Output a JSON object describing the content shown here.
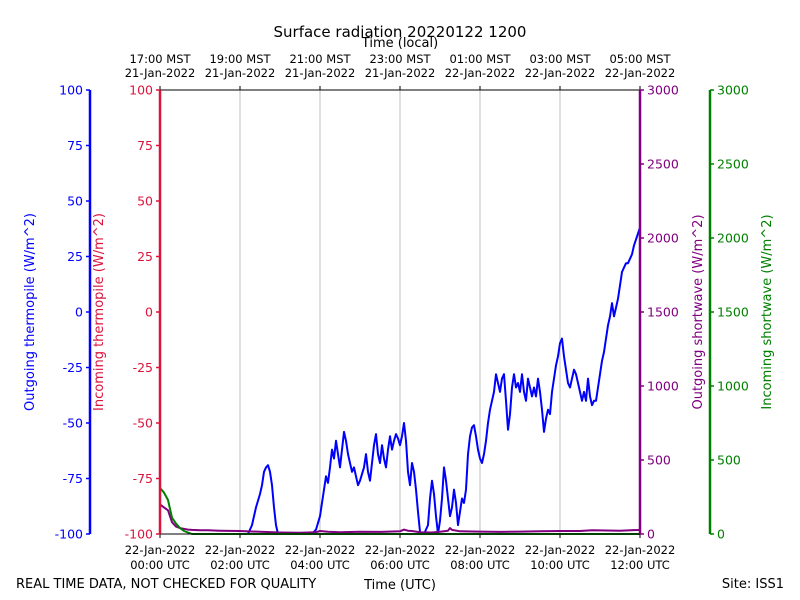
{
  "chart_data": {
    "type": "line",
    "title": "Surface radiation 20220122 1200",
    "xlabel_top": "Time (local)",
    "xlabel_bottom": "Time (UTC)",
    "footer_left": "REAL TIME DATA, NOT CHECKED FOR QUALITY",
    "footer_right": "Site: ISS1",
    "xlim_hours": [
      0,
      12
    ],
    "grid": "vertical",
    "bottom_ticks": [
      {
        "h": 0,
        "l1": "22-Jan-2022",
        "l2": "00:00 UTC"
      },
      {
        "h": 2,
        "l1": "22-Jan-2022",
        "l2": "02:00 UTC"
      },
      {
        "h": 4,
        "l1": "22-Jan-2022",
        "l2": "04:00 UTC"
      },
      {
        "h": 6,
        "l1": "22-Jan-2022",
        "l2": "06:00 UTC"
      },
      {
        "h": 8,
        "l1": "22-Jan-2022",
        "l2": "08:00 UTC"
      },
      {
        "h": 10,
        "l1": "22-Jan-2022",
        "l2": "10:00 UTC"
      },
      {
        "h": 12,
        "l1": "22-Jan-2022",
        "l2": "12:00 UTC"
      }
    ],
    "top_ticks": [
      {
        "h": 0,
        "l1": "17:00 MST",
        "l2": "21-Jan-2022"
      },
      {
        "h": 2,
        "l1": "19:00 MST",
        "l2": "21-Jan-2022"
      },
      {
        "h": 4,
        "l1": "21:00 MST",
        "l2": "21-Jan-2022"
      },
      {
        "h": 6,
        "l1": "23:00 MST",
        "l2": "21-Jan-2022"
      },
      {
        "h": 8,
        "l1": "01:00 MST",
        "l2": "22-Jan-2022"
      },
      {
        "h": 10,
        "l1": "03:00 MST",
        "l2": "22-Jan-2022"
      },
      {
        "h": 12,
        "l1": "05:00 MST",
        "l2": "22-Jan-2022"
      }
    ],
    "axes": [
      {
        "name": "outgoing-thermopile",
        "label": "Outgoing thermopile (W/m^2)",
        "color": "#0000ff",
        "ylim": [
          -100,
          100
        ],
        "ticks": [
          -100,
          -75,
          -50,
          -25,
          0,
          25,
          50,
          75,
          100
        ]
      },
      {
        "name": "incoming-thermopile",
        "label": "Incoming thermopile (W/m^2)",
        "color": "#dc143c",
        "ylim": [
          -100,
          100
        ],
        "ticks": [
          -100,
          -75,
          -50,
          -25,
          0,
          25,
          50,
          75,
          100
        ]
      },
      {
        "name": "outgoing-shortwave",
        "label": "Outgoing shortwave (W/m^2)",
        "color": "#800080",
        "ylim": [
          0,
          3000
        ],
        "ticks": [
          0,
          500,
          1000,
          1500,
          2000,
          2500,
          3000
        ]
      },
      {
        "name": "incoming-shortwave",
        "label": "Incoming shortwave (W/m^2)",
        "color": "#008000",
        "ylim": [
          0,
          3000
        ],
        "ticks": [
          0,
          500,
          1000,
          1500,
          2000,
          2500,
          3000
        ]
      }
    ],
    "series": [
      {
        "name": "Outgoing thermopile",
        "axis": 0,
        "color": "#0000ff",
        "points": [
          [
            2.2,
            -100
          ],
          [
            2.3,
            -96
          ],
          [
            2.4,
            -88
          ],
          [
            2.5,
            -82
          ],
          [
            2.55,
            -78
          ],
          [
            2.6,
            -72
          ],
          [
            2.65,
            -70
          ],
          [
            2.7,
            -69
          ],
          [
            2.75,
            -72
          ],
          [
            2.8,
            -78
          ],
          [
            2.85,
            -88
          ],
          [
            2.9,
            -96
          ],
          [
            2.95,
            -100
          ],
          [
            3.0,
            -100
          ],
          [
            3.5,
            -100
          ],
          [
            3.8,
            -100
          ],
          [
            3.9,
            -98
          ],
          [
            4.0,
            -92
          ],
          [
            4.05,
            -86
          ],
          [
            4.1,
            -80
          ],
          [
            4.15,
            -74
          ],
          [
            4.2,
            -77
          ],
          [
            4.25,
            -70
          ],
          [
            4.3,
            -62
          ],
          [
            4.35,
            -66
          ],
          [
            4.4,
            -58
          ],
          [
            4.45,
            -64
          ],
          [
            4.5,
            -70
          ],
          [
            4.55,
            -62
          ],
          [
            4.6,
            -54
          ],
          [
            4.65,
            -58
          ],
          [
            4.7,
            -64
          ],
          [
            4.75,
            -68
          ],
          [
            4.8,
            -72
          ],
          [
            4.85,
            -70
          ],
          [
            4.9,
            -74
          ],
          [
            4.95,
            -78
          ],
          [
            5.0,
            -76
          ],
          [
            5.1,
            -70
          ],
          [
            5.15,
            -64
          ],
          [
            5.2,
            -72
          ],
          [
            5.25,
            -76
          ],
          [
            5.3,
            -68
          ],
          [
            5.35,
            -60
          ],
          [
            5.4,
            -55
          ],
          [
            5.45,
            -64
          ],
          [
            5.5,
            -68
          ],
          [
            5.55,
            -60
          ],
          [
            5.6,
            -66
          ],
          [
            5.65,
            -70
          ],
          [
            5.7,
            -62
          ],
          [
            5.75,
            -56
          ],
          [
            5.8,
            -62
          ],
          [
            5.85,
            -58
          ],
          [
            5.9,
            -55
          ],
          [
            5.95,
            -57
          ],
          [
            6.0,
            -60
          ],
          [
            6.05,
            -56
          ],
          [
            6.1,
            -50
          ],
          [
            6.15,
            -58
          ],
          [
            6.2,
            -72
          ],
          [
            6.25,
            -78
          ],
          [
            6.3,
            -68
          ],
          [
            6.35,
            -72
          ],
          [
            6.4,
            -80
          ],
          [
            6.45,
            -90
          ],
          [
            6.5,
            -99
          ],
          [
            6.55,
            -100
          ],
          [
            6.6,
            -100
          ],
          [
            6.7,
            -96
          ],
          [
            6.75,
            -84
          ],
          [
            6.8,
            -76
          ],
          [
            6.85,
            -82
          ],
          [
            6.9,
            -92
          ],
          [
            6.95,
            -100
          ],
          [
            7.0,
            -94
          ],
          [
            7.05,
            -84
          ],
          [
            7.1,
            -70
          ],
          [
            7.15,
            -76
          ],
          [
            7.2,
            -84
          ],
          [
            7.25,
            -92
          ],
          [
            7.3,
            -88
          ],
          [
            7.35,
            -80
          ],
          [
            7.4,
            -86
          ],
          [
            7.45,
            -96
          ],
          [
            7.5,
            -90
          ],
          [
            7.55,
            -84
          ],
          [
            7.6,
            -86
          ],
          [
            7.65,
            -80
          ],
          [
            7.7,
            -64
          ],
          [
            7.75,
            -56
          ],
          [
            7.8,
            -52
          ],
          [
            7.85,
            -51
          ],
          [
            7.9,
            -56
          ],
          [
            7.95,
            -62
          ],
          [
            8.0,
            -66
          ],
          [
            8.05,
            -68
          ],
          [
            8.1,
            -64
          ],
          [
            8.15,
            -58
          ],
          [
            8.2,
            -50
          ],
          [
            8.25,
            -44
          ],
          [
            8.3,
            -40
          ],
          [
            8.35,
            -36
          ],
          [
            8.4,
            -28
          ],
          [
            8.45,
            -32
          ],
          [
            8.5,
            -36
          ],
          [
            8.55,
            -30
          ],
          [
            8.6,
            -28
          ],
          [
            8.65,
            -40
          ],
          [
            8.7,
            -53
          ],
          [
            8.75,
            -46
          ],
          [
            8.8,
            -34
          ],
          [
            8.85,
            -28
          ],
          [
            8.9,
            -34
          ],
          [
            8.95,
            -32
          ],
          [
            9.0,
            -36
          ],
          [
            9.05,
            -28
          ],
          [
            9.1,
            -36
          ],
          [
            9.15,
            -40
          ],
          [
            9.2,
            -30
          ],
          [
            9.25,
            -34
          ],
          [
            9.3,
            -38
          ],
          [
            9.35,
            -34
          ],
          [
            9.4,
            -38
          ],
          [
            9.45,
            -30
          ],
          [
            9.5,
            -36
          ],
          [
            9.55,
            -44
          ],
          [
            9.6,
            -54
          ],
          [
            9.65,
            -48
          ],
          [
            9.7,
            -44
          ],
          [
            9.75,
            -46
          ],
          [
            9.8,
            -36
          ],
          [
            9.85,
            -30
          ],
          [
            9.9,
            -24
          ],
          [
            9.95,
            -20
          ],
          [
            10.0,
            -14
          ],
          [
            10.05,
            -12
          ],
          [
            10.1,
            -20
          ],
          [
            10.15,
            -26
          ],
          [
            10.2,
            -32
          ],
          [
            10.25,
            -34
          ],
          [
            10.3,
            -30
          ],
          [
            10.35,
            -26
          ],
          [
            10.4,
            -28
          ],
          [
            10.45,
            -32
          ],
          [
            10.5,
            -36
          ],
          [
            10.55,
            -40
          ],
          [
            10.6,
            -36
          ],
          [
            10.65,
            -40
          ],
          [
            10.7,
            -30
          ],
          [
            10.75,
            -38
          ],
          [
            10.8,
            -42
          ],
          [
            10.85,
            -40
          ],
          [
            10.9,
            -40
          ],
          [
            10.95,
            -34
          ],
          [
            11.0,
            -28
          ],
          [
            11.05,
            -22
          ],
          [
            11.1,
            -18
          ],
          [
            11.15,
            -12
          ],
          [
            11.2,
            -6
          ],
          [
            11.25,
            -2
          ],
          [
            11.3,
            4
          ],
          [
            11.35,
            -2
          ],
          [
            11.4,
            2
          ],
          [
            11.45,
            6
          ],
          [
            11.5,
            12
          ],
          [
            11.55,
            18
          ],
          [
            11.6,
            20
          ],
          [
            11.65,
            22
          ],
          [
            11.7,
            22
          ],
          [
            11.75,
            24
          ],
          [
            11.8,
            26
          ],
          [
            11.85,
            30
          ],
          [
            12.0,
            38
          ]
        ]
      },
      {
        "name": "Outgoing shortwave",
        "axis": 2,
        "color": "#800080",
        "points": [
          [
            0.0,
            200
          ],
          [
            0.1,
            180
          ],
          [
            0.2,
            160
          ],
          [
            0.3,
            80
          ],
          [
            0.4,
            50
          ],
          [
            0.5,
            40
          ],
          [
            0.6,
            35
          ],
          [
            0.7,
            30
          ],
          [
            0.8,
            28
          ],
          [
            1.0,
            25
          ],
          [
            1.2,
            25
          ],
          [
            1.5,
            22
          ],
          [
            2.0,
            20
          ],
          [
            2.5,
            15
          ],
          [
            3.0,
            10
          ],
          [
            3.5,
            8
          ],
          [
            3.9,
            12
          ],
          [
            4.0,
            20
          ],
          [
            4.2,
            15
          ],
          [
            4.5,
            12
          ],
          [
            5.0,
            15
          ],
          [
            5.5,
            14
          ],
          [
            6.0,
            18
          ],
          [
            6.1,
            30
          ],
          [
            6.2,
            22
          ],
          [
            6.3,
            20
          ],
          [
            6.5,
            12
          ],
          [
            6.8,
            10
          ],
          [
            7.0,
            15
          ],
          [
            7.2,
            22
          ],
          [
            7.25,
            40
          ],
          [
            7.3,
            28
          ],
          [
            7.5,
            18
          ],
          [
            8.0,
            16
          ],
          [
            8.5,
            14
          ],
          [
            9.0,
            16
          ],
          [
            9.5,
            18
          ],
          [
            10.0,
            20
          ],
          [
            10.5,
            20
          ],
          [
            10.8,
            26
          ],
          [
            11.0,
            24
          ],
          [
            11.5,
            22
          ],
          [
            12.0,
            28
          ]
        ]
      },
      {
        "name": "Incoming shortwave",
        "axis": 3,
        "color": "#008000",
        "points": [
          [
            0.0,
            310
          ],
          [
            0.1,
            280
          ],
          [
            0.2,
            230
          ],
          [
            0.3,
            110
          ],
          [
            0.4,
            70
          ],
          [
            0.5,
            40
          ],
          [
            0.6,
            20
          ],
          [
            0.7,
            10
          ],
          [
            0.8,
            0
          ],
          [
            12.0,
            0
          ]
        ]
      }
    ]
  }
}
